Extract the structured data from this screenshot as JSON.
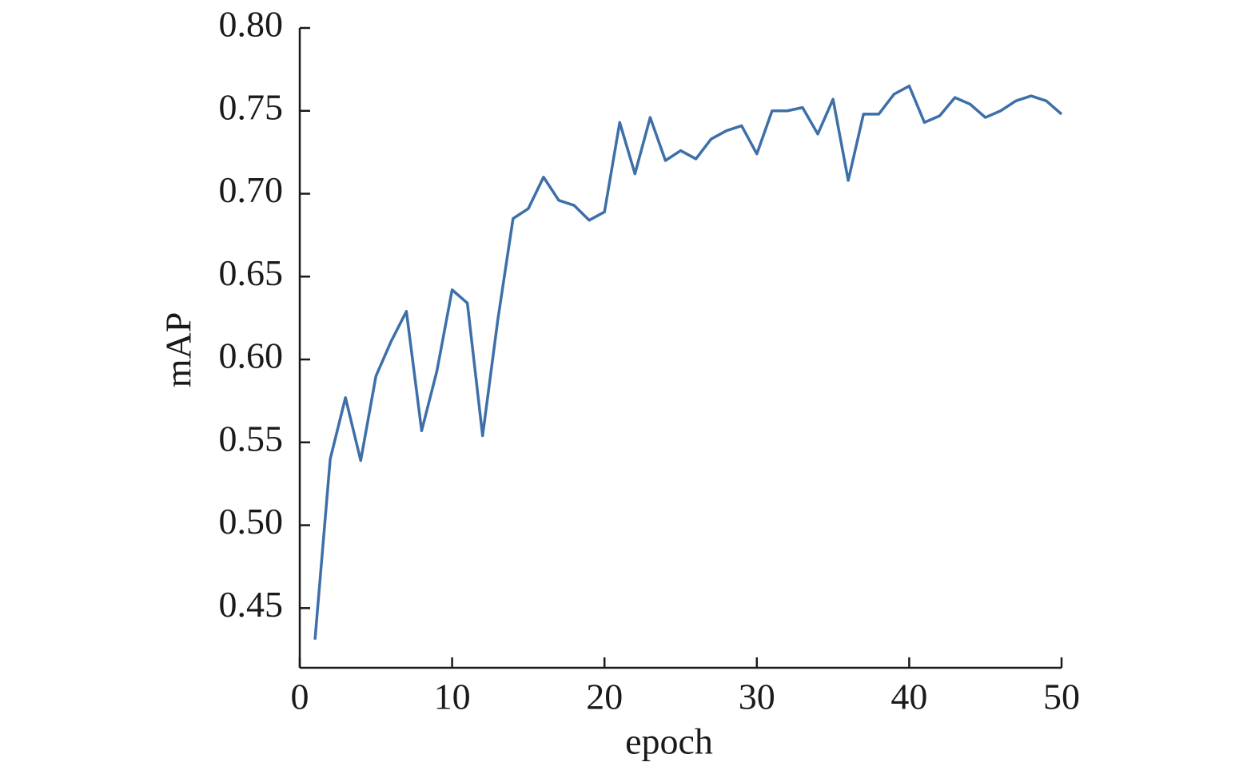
{
  "chart_data": {
    "type": "line",
    "x_label": "epoch",
    "y_label": "mAP",
    "x": [
      1,
      2,
      3,
      4,
      5,
      6,
      7,
      8,
      9,
      10,
      11,
      12,
      13,
      14,
      15,
      16,
      17,
      18,
      19,
      20,
      21,
      22,
      23,
      24,
      25,
      26,
      27,
      28,
      29,
      30,
      31,
      32,
      33,
      34,
      35,
      36,
      37,
      38,
      39,
      40,
      41,
      42,
      43,
      44,
      45,
      46,
      47,
      48,
      49,
      50
    ],
    "series": [
      {
        "color": "#3d6fa8",
        "values": [
          0.431,
          0.54,
          0.577,
          0.539,
          0.59,
          0.611,
          0.629,
          0.557,
          0.593,
          0.642,
          0.634,
          0.554,
          0.624,
          0.685,
          0.691,
          0.71,
          0.696,
          0.693,
          0.684,
          0.689,
          0.743,
          0.712,
          0.746,
          0.72,
          0.726,
          0.721,
          0.733,
          0.738,
          0.741,
          0.724,
          0.75,
          0.75,
          0.752,
          0.736,
          0.757,
          0.708,
          0.748,
          0.748,
          0.76,
          0.765,
          0.743,
          0.747,
          0.758,
          0.754,
          0.746,
          0.75,
          0.756,
          0.759,
          0.756,
          0.748
        ]
      }
    ],
    "xlim": [
      0,
      50
    ],
    "xticks": [
      0,
      10,
      20,
      30,
      40,
      50
    ],
    "ylim": [
      0.414,
      0.8
    ],
    "yticks": [
      0.45,
      {
        "value": 0.5,
        "label": "0.50"
      },
      0.55,
      {
        "value": 0.6,
        "label": "0.60"
      },
      0.65,
      {
        "value": 0.7,
        "label": "0.70"
      },
      0.75,
      {
        "value": 0.8,
        "label": "0.80"
      }
    ]
  }
}
